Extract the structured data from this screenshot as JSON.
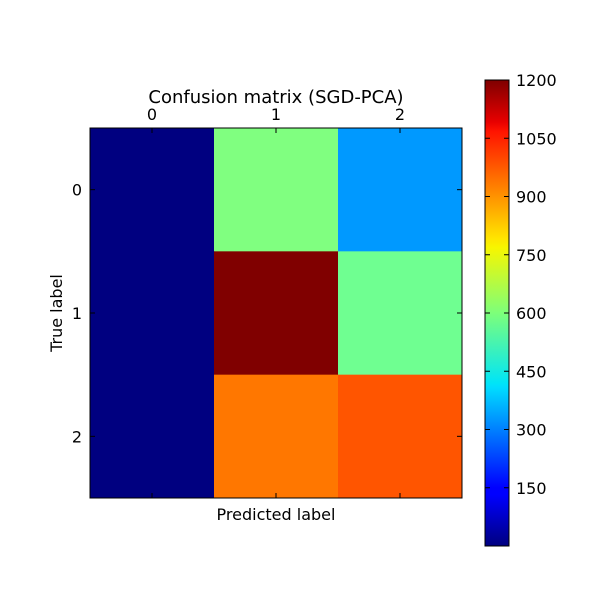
{
  "chart_data": {
    "type": "heatmap",
    "title": "Confusion matrix (SGD-PCA)",
    "xlabel": "Predicted label",
    "ylabel": "True label",
    "x_ticks": [
      "0",
      "1",
      "2"
    ],
    "y_ticks": [
      "0",
      "1",
      "2"
    ],
    "matrix": [
      [
        0,
        600,
        330
      ],
      [
        0,
        1200,
        580
      ],
      [
        0,
        910,
        950
      ]
    ],
    "colormap": "jet",
    "vmin": 0,
    "vmax": 1200,
    "colorbar_ticks": [
      "150",
      "300",
      "450",
      "600",
      "750",
      "900",
      "1050",
      "1200"
    ],
    "colorbar_values": [
      150,
      300,
      450,
      600,
      750,
      900,
      1050,
      1200
    ]
  }
}
